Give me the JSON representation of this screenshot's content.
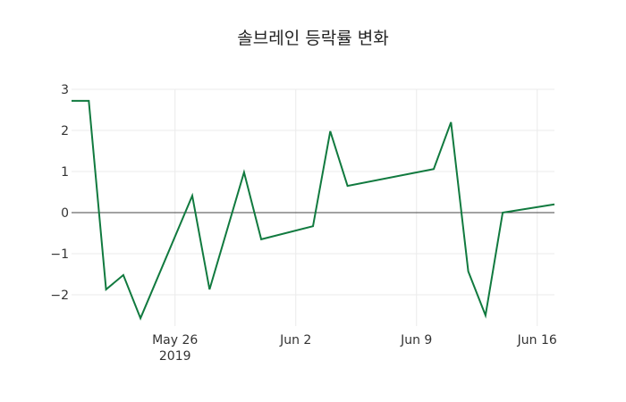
{
  "chart_data": {
    "type": "line",
    "title": "솔브레인 등락률 변화",
    "xlabel": "",
    "ylabel": "",
    "x": [
      "2019-05-20",
      "2019-05-21",
      "2019-05-22",
      "2019-05-23",
      "2019-05-24",
      "2019-05-27",
      "2019-05-28",
      "2019-05-30",
      "2019-05-31",
      "2019-06-03",
      "2019-06-04",
      "2019-06-05",
      "2019-06-10",
      "2019-06-11",
      "2019-06-12",
      "2019-06-13",
      "2019-06-14",
      "2019-06-17"
    ],
    "series": [
      {
        "name": "등락률",
        "color": "#117a3f",
        "values": [
          2.72,
          2.72,
          -1.87,
          -1.52,
          -2.57,
          0.41,
          -1.87,
          0.98,
          -0.65,
          -0.33,
          1.98,
          0.65,
          1.06,
          2.2,
          -1.43,
          -2.5,
          0.0,
          0.2
        ]
      }
    ],
    "ylim": [
      -2.75,
      3.0
    ],
    "yticks": [
      3,
      2,
      1,
      0,
      -1,
      -2
    ],
    "ytick_labels": [
      "3",
      "2",
      "1",
      "0",
      "−1",
      "−2"
    ],
    "xticks": [
      {
        "date": "2019-05-26",
        "label": "May 26",
        "sublabel": "2019"
      },
      {
        "date": "2019-06-02",
        "label": "Jun 2",
        "sublabel": ""
      },
      {
        "date": "2019-06-09",
        "label": "Jun 9",
        "sublabel": ""
      },
      {
        "date": "2019-06-16",
        "label": "Jun 16",
        "sublabel": ""
      }
    ],
    "grid": true,
    "zero_line": true,
    "legend": false
  }
}
